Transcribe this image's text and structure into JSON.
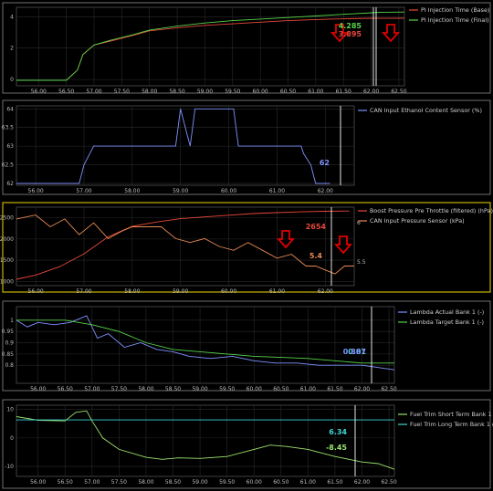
{
  "colors": {
    "red": "#e8483a",
    "green": "#56d34a",
    "blue": "#7f93ff",
    "orange": "#e88a55",
    "lime": "#9be26f",
    "cyan": "#40d6d6",
    "arrow": "#e00000",
    "panel_border": "#8a8a8a",
    "yellow_border": "#c8b400",
    "grid": "#2a2a2a"
  },
  "chart_data": [
    {
      "type": "line",
      "grid": true,
      "legend": "top-right",
      "xlim": [
        55.6,
        62.6
      ],
      "ylim": [
        -0.4,
        4.6
      ],
      "x_ticks": [
        "56.00",
        "56.50",
        "57.00",
        "57.50",
        "58.00",
        "58.50",
        "59.00",
        "59.50",
        "60.00",
        "60.50",
        "61.00",
        "61.50",
        "62.00",
        "62.50"
      ],
      "y_ticks": [
        "0",
        "2",
        "4"
      ],
      "series": [
        {
          "name": "PI Injection Time (Base)",
          "color_key": "red",
          "x": [
            55.6,
            56.0,
            56.3,
            56.5,
            56.7,
            56.8,
            57.0,
            57.3,
            57.7,
            58.0,
            58.5,
            59.0,
            59.5,
            60.0,
            60.5,
            61.0,
            61.5,
            62.0,
            62.2,
            62.6
          ],
          "y": [
            -0.05,
            -0.05,
            -0.05,
            -0.05,
            0.6,
            1.6,
            2.2,
            2.45,
            2.8,
            3.1,
            3.3,
            3.45,
            3.55,
            3.65,
            3.75,
            3.82,
            3.87,
            3.9,
            3.895,
            3.9
          ]
        },
        {
          "name": "PI Injection Time (Final)",
          "color_key": "green",
          "x": [
            55.6,
            56.0,
            56.3,
            56.5,
            56.7,
            56.8,
            57.0,
            57.3,
            57.7,
            58.0,
            58.5,
            59.0,
            59.5,
            60.0,
            60.5,
            61.0,
            61.5,
            62.0,
            62.2,
            62.6
          ],
          "y": [
            -0.05,
            -0.05,
            -0.05,
            -0.05,
            0.6,
            1.6,
            2.2,
            2.5,
            2.85,
            3.15,
            3.4,
            3.6,
            3.75,
            3.85,
            3.95,
            4.05,
            4.15,
            4.25,
            4.285,
            4.3
          ]
        }
      ],
      "cursor_values": [
        {
          "text": "4.285",
          "color_key": "green"
        },
        {
          "text": "3.895",
          "color_key": "red"
        }
      ]
    },
    {
      "type": "line",
      "grid": true,
      "legend": "top-right",
      "xlim": [
        55.6,
        62.6
      ],
      "ylim": [
        61.95,
        64.08
      ],
      "x_ticks": [
        "56.00",
        "57.00",
        "58.00",
        "59.00",
        "60.00",
        "61.00",
        "62.00"
      ],
      "y_ticks": [
        "62",
        "62.5",
        "63",
        "63.5",
        "64"
      ],
      "series": [
        {
          "name": "CAN Input Ethanol Content Sensor (%)",
          "color_key": "blue",
          "x": [
            55.6,
            56.9,
            57.0,
            57.2,
            58.9,
            59.0,
            59.1,
            59.2,
            59.3,
            59.4,
            60.1,
            60.2,
            61.3,
            61.5,
            61.55,
            61.7,
            61.8,
            62.1
          ],
          "y": [
            62,
            62,
            62.5,
            63,
            63,
            64,
            63.5,
            63,
            64,
            64,
            64,
            63,
            63,
            63,
            62.8,
            62.5,
            62,
            62
          ]
        }
      ],
      "cursor_values": [
        {
          "text": "62",
          "color_key": "blue"
        }
      ]
    },
    {
      "type": "line",
      "grid": true,
      "legend": "top-right",
      "xlim": [
        55.6,
        62.6
      ],
      "ylim_left": [
        900,
        2750
      ],
      "ylim_right": [
        5.2,
        6.2
      ],
      "x_ticks": [
        "56.00",
        "57.00",
        "58.00",
        "59.00",
        "60.00",
        "61.00",
        "62.00"
      ],
      "y_ticks_left": [
        "1000",
        "1500",
        "2000",
        "2500"
      ],
      "y_ticks_right": [
        "5.5",
        "6"
      ],
      "series": [
        {
          "name": "Boost Pressure Pre Throttle (filtered) (hPa)",
          "color_key": "red",
          "axis": "left",
          "x": [
            55.6,
            56.0,
            56.5,
            57.0,
            57.5,
            58.0,
            58.5,
            59.0,
            59.5,
            60.0,
            60.5,
            61.0,
            61.5,
            62.0,
            62.5
          ],
          "y": [
            1050,
            1150,
            1350,
            1650,
            2050,
            2300,
            2400,
            2480,
            2520,
            2560,
            2600,
            2620,
            2640,
            2654,
            2660
          ]
        },
        {
          "name": "CAN Input Pressure Sensor (kPa)",
          "color_key": "orange",
          "axis": "right",
          "x": [
            55.6,
            56.0,
            56.3,
            56.6,
            56.9,
            57.2,
            57.5,
            57.8,
            58.0,
            58.3,
            58.6,
            58.9,
            59.2,
            59.5,
            59.8,
            60.1,
            60.4,
            60.7,
            61.0,
            61.3,
            61.6,
            61.8,
            62.0,
            62.2,
            62.4,
            62.6
          ],
          "y": [
            6.05,
            6.1,
            5.95,
            6.05,
            5.85,
            6.0,
            5.8,
            5.9,
            5.95,
            5.95,
            5.95,
            5.8,
            5.75,
            5.8,
            5.7,
            5.65,
            5.75,
            5.65,
            5.55,
            5.6,
            5.45,
            5.45,
            5.4,
            5.35,
            5.45,
            5.45
          ]
        }
      ],
      "cursor_values": [
        {
          "text": "2654",
          "color_key": "red"
        },
        {
          "text": "5.4",
          "color_key": "orange"
        }
      ]
    },
    {
      "type": "line",
      "grid": true,
      "legend": "top-right",
      "xlim": [
        55.6,
        62.6
      ],
      "ylim": [
        0.72,
        1.06
      ],
      "x_ticks": [
        "56.00",
        "56.50",
        "57.00",
        "57.50",
        "58.00",
        "58.50",
        "59.00",
        "59.50",
        "60.00",
        "60.50",
        "61.00",
        "61.50",
        "62.00",
        "62.50"
      ],
      "y_ticks": [
        "0.8",
        "0.85",
        "0.9",
        "0.95",
        "1"
      ],
      "series": [
        {
          "name": "Lambda Actual Bank 1 (-)",
          "color_key": "blue",
          "x": [
            55.6,
            55.8,
            56.0,
            56.3,
            56.6,
            56.9,
            57.1,
            57.3,
            57.6,
            57.9,
            58.2,
            58.5,
            58.8,
            59.2,
            59.6,
            60.0,
            60.4,
            60.8,
            61.2,
            61.6,
            62.0,
            62.3,
            62.6
          ],
          "y": [
            1.0,
            0.97,
            0.99,
            0.98,
            0.99,
            1.02,
            0.92,
            0.94,
            0.88,
            0.9,
            0.87,
            0.86,
            0.84,
            0.83,
            0.84,
            0.82,
            0.81,
            0.81,
            0.8,
            0.8,
            0.8,
            0.79,
            0.78
          ]
        },
        {
          "name": "Lambda Target Bank 1 (-)",
          "color_key": "green",
          "x": [
            55.6,
            56.5,
            57.0,
            57.5,
            58.0,
            58.5,
            59.0,
            59.5,
            60.0,
            60.5,
            61.0,
            61.5,
            62.0,
            62.6
          ],
          "y": [
            1.0,
            1.0,
            0.98,
            0.95,
            0.9,
            0.87,
            0.86,
            0.85,
            0.84,
            0.835,
            0.83,
            0.82,
            0.81,
            0.81
          ]
        }
      ],
      "cursor_values": [
        {
          "text": "0.81",
          "color_key": "cyan"
        },
        {
          "text": "0.807",
          "color_key": "blue"
        }
      ]
    },
    {
      "type": "line",
      "grid": true,
      "legend": "top-right",
      "xlim": [
        55.6,
        62.6
      ],
      "ylim": [
        -13.5,
        11.5
      ],
      "x_ticks": [
        "56.00",
        "56.50",
        "57.00",
        "57.50",
        "58.00",
        "58.50",
        "59.00",
        "59.50",
        "60.00",
        "60.50",
        "61.00",
        "61.50",
        "62.00",
        "62.50"
      ],
      "y_ticks": [
        "10",
        "0",
        "-10"
      ],
      "series": [
        {
          "name": "Fuel Trim Short Term Bank 1 (%)",
          "color_key": "lime",
          "x": [
            55.6,
            56.0,
            56.5,
            56.7,
            56.9,
            57.0,
            57.2,
            57.5,
            58.0,
            58.3,
            58.6,
            59.0,
            59.5,
            60.0,
            60.3,
            60.6,
            61.0,
            61.5,
            62.0,
            62.3,
            62.6
          ],
          "y": [
            7.5,
            6.2,
            6.0,
            9.0,
            9.5,
            6.0,
            0.0,
            -4.0,
            -6.8,
            -7.5,
            -7.0,
            -7.2,
            -6.5,
            -4.0,
            -2.5,
            -3.0,
            -4.0,
            -6.5,
            -8.45,
            -9.0,
            -11.0
          ]
        },
        {
          "name": "Fuel Trim Long Term Bank 1 (%)",
          "color_key": "cyan",
          "x": [
            55.6,
            62.6
          ],
          "y": [
            6.34,
            6.34
          ]
        }
      ],
      "cursor_values": [
        {
          "text": "6.34",
          "color_key": "cyan"
        },
        {
          "text": "-8.45",
          "color_key": "lime"
        }
      ]
    }
  ]
}
